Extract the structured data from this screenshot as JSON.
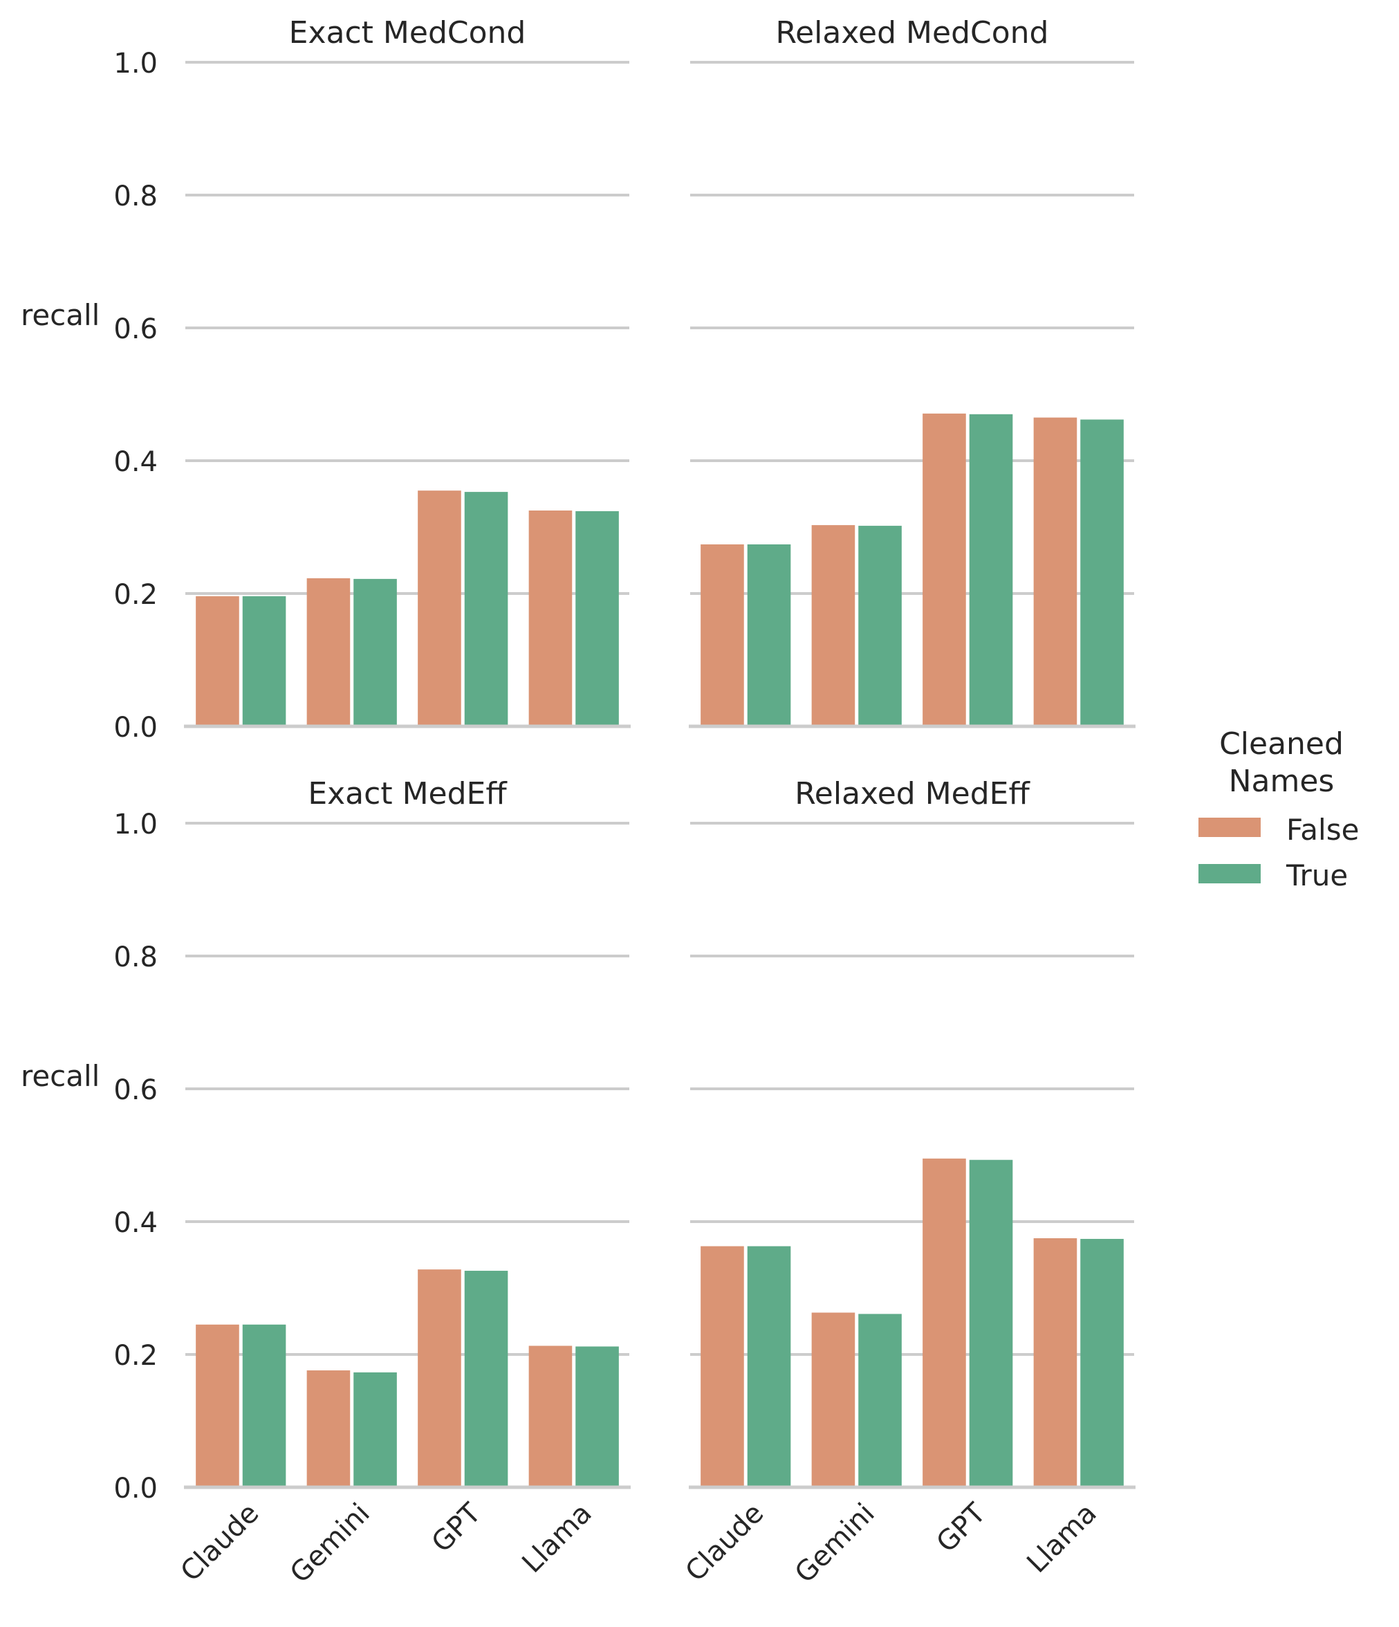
{
  "figure": {
    "legend": {
      "title_line1": "Cleaned",
      "title_line2": "Names",
      "entries": [
        {
          "label": "False",
          "color": "#DA9474"
        },
        {
          "label": "True",
          "color": "#5FAB89"
        }
      ],
      "placement": "right"
    }
  },
  "chart_data": [
    {
      "type": "bar",
      "title": "Exact MedCond",
      "ylabel": "recall",
      "xlabel": "",
      "ylim": [
        0,
        1.0
      ],
      "yticks": [
        "0.0",
        "0.2",
        "0.4",
        "0.6",
        "0.8",
        "1.0"
      ],
      "grid": "horizontal",
      "categories": [
        "Claude",
        "Gemini",
        "GPT",
        "Llama"
      ],
      "series": [
        {
          "name": "False",
          "values": [
            0.196,
            0.223,
            0.355,
            0.325
          ]
        },
        {
          "name": "True",
          "values": [
            0.196,
            0.222,
            0.353,
            0.324
          ]
        }
      ]
    },
    {
      "type": "bar",
      "title": "Relaxed MedCond",
      "ylabel": "",
      "xlabel": "",
      "ylim": [
        0,
        1.0
      ],
      "grid": "horizontal",
      "categories": [
        "Claude",
        "Gemini",
        "GPT",
        "Llama"
      ],
      "series": [
        {
          "name": "False",
          "values": [
            0.274,
            0.303,
            0.471,
            0.465
          ]
        },
        {
          "name": "True",
          "values": [
            0.274,
            0.302,
            0.47,
            0.462
          ]
        }
      ]
    },
    {
      "type": "bar",
      "title": "Exact MedEff",
      "ylabel": "recall",
      "xlabel": "",
      "ylim": [
        0,
        1.0
      ],
      "yticks": [
        "0.0",
        "0.2",
        "0.4",
        "0.6",
        "0.8",
        "1.0"
      ],
      "grid": "horizontal",
      "categories": [
        "Claude",
        "Gemini",
        "GPT",
        "Llama"
      ],
      "series": [
        {
          "name": "False",
          "values": [
            0.245,
            0.176,
            0.328,
            0.213
          ]
        },
        {
          "name": "True",
          "values": [
            0.245,
            0.173,
            0.326,
            0.212
          ]
        }
      ]
    },
    {
      "type": "bar",
      "title": "Relaxed MedEff",
      "ylabel": "",
      "xlabel": "",
      "ylim": [
        0,
        1.0
      ],
      "grid": "horizontal",
      "categories": [
        "Claude",
        "Gemini",
        "GPT",
        "Llama"
      ],
      "series": [
        {
          "name": "False",
          "values": [
            0.363,
            0.263,
            0.495,
            0.375
          ]
        },
        {
          "name": "True",
          "values": [
            0.363,
            0.261,
            0.493,
            0.374
          ]
        }
      ]
    }
  ]
}
